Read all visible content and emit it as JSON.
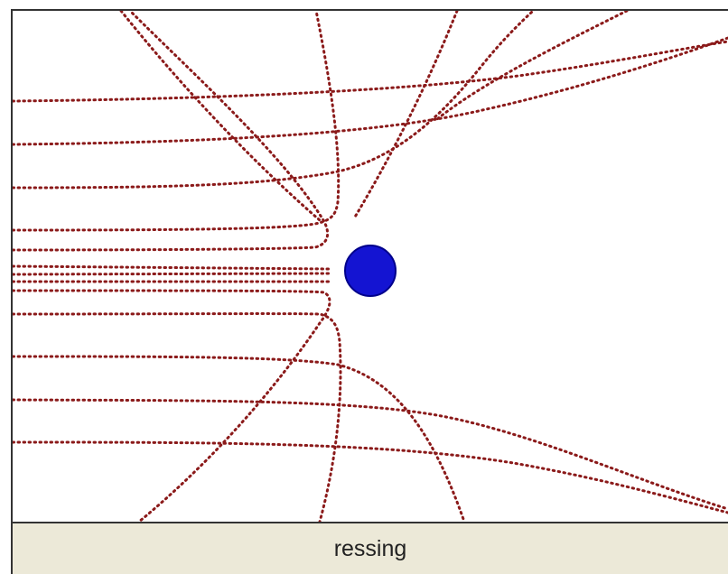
{
  "status_bar": {
    "text": "ressing"
  },
  "colors": {
    "trajectory": "#8b1a1a",
    "target": "#1414d2",
    "target_outline": "#00008b",
    "status_bg": "#ece9d8",
    "frame": "#333333"
  },
  "icons": {
    "target": "blue-sphere-icon"
  }
}
